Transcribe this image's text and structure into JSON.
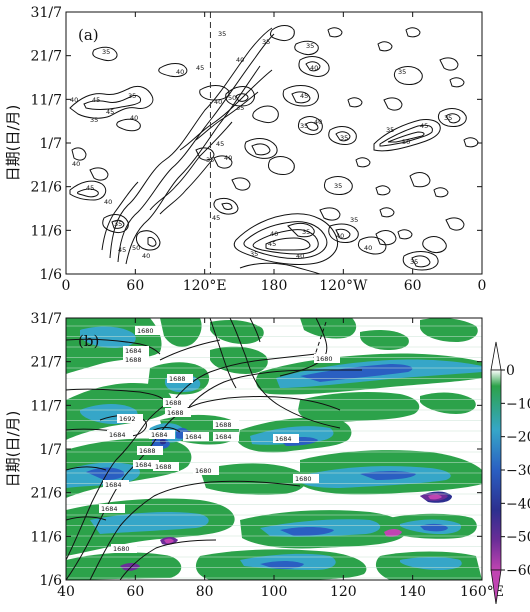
{
  "chart_data": [
    {
      "type": "heatmap",
      "panel_label": "(a)",
      "ylabel": "日期(日/月)",
      "y_ticks": [
        "1/6",
        "11/6",
        "21/6",
        "1/7",
        "11/7",
        "21/7",
        "31/7"
      ],
      "x_ticks": [
        "0",
        "60",
        "120°E",
        "180",
        "120°W",
        "60",
        "0"
      ],
      "xlim": [
        0,
        360
      ],
      "contour_levels": [
        35,
        40,
        45,
        50
      ],
      "reference_line_lon": 125,
      "contour_labels": [
        "35",
        "40",
        "45",
        "50"
      ]
    },
    {
      "type": "heatmap",
      "panel_label": "(b)",
      "ylabel": "日期(日/月)",
      "y_ticks": [
        "1/6",
        "11/6",
        "21/6",
        "1/7",
        "11/7",
        "21/7",
        "31/7"
      ],
      "x_ticks": [
        "40",
        "60",
        "80",
        "100",
        "120",
        "140",
        "160°E"
      ],
      "xlim": [
        40,
        160
      ],
      "contour_levels": [
        1680,
        1684,
        1688,
        1692
      ],
      "contour_labels": [
        "1680",
        "1684",
        "1688",
        "1692"
      ],
      "colorbar_ticks": [
        "0",
        "−10",
        "−20",
        "−30",
        "−40",
        "−50",
        "−60"
      ],
      "colorbar_colors": [
        "#ffffff",
        "#2ca24a",
        "#36a6c8",
        "#2a5fc2",
        "#2c2f8f",
        "#6a2d97",
        "#c044b2"
      ]
    }
  ]
}
